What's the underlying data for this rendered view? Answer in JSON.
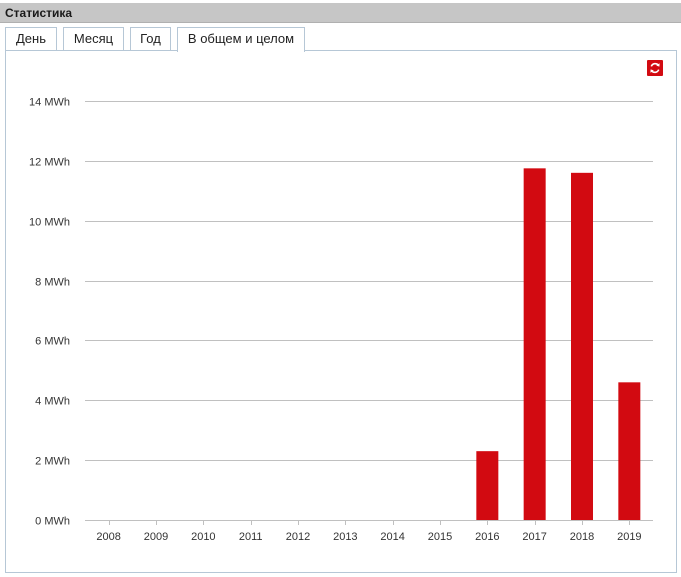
{
  "panel": {
    "title": "Статистика"
  },
  "tabs": [
    {
      "label": "День"
    },
    {
      "label": "Месяц"
    },
    {
      "label": "Год"
    },
    {
      "label": "В общем и целом"
    }
  ],
  "active_tab": "В общем и целом",
  "icons": {
    "refresh": "refresh-icon"
  },
  "colors": {
    "bar": "#d20a11",
    "grid": "#c0c0c0",
    "header": "#c6c6c6",
    "tab_border": "#b6c7d6"
  },
  "chart_data": {
    "type": "bar",
    "categories": [
      "2008",
      "2009",
      "2010",
      "2011",
      "2012",
      "2013",
      "2014",
      "2015",
      "2016",
      "2017",
      "2018",
      "2019"
    ],
    "values": [
      0,
      0,
      0,
      0,
      0,
      0,
      0,
      0,
      2.3,
      11.75,
      11.6,
      4.6
    ],
    "unit": "MWh",
    "y_ticks": [
      "0 MWh",
      "2 MWh",
      "4 MWh",
      "6 MWh",
      "8 MWh",
      "10 MWh",
      "12 MWh",
      "14 MWh"
    ],
    "ylim": [
      0,
      14
    ],
    "grid": true,
    "title": "",
    "xlabel": "",
    "ylabel": ""
  }
}
